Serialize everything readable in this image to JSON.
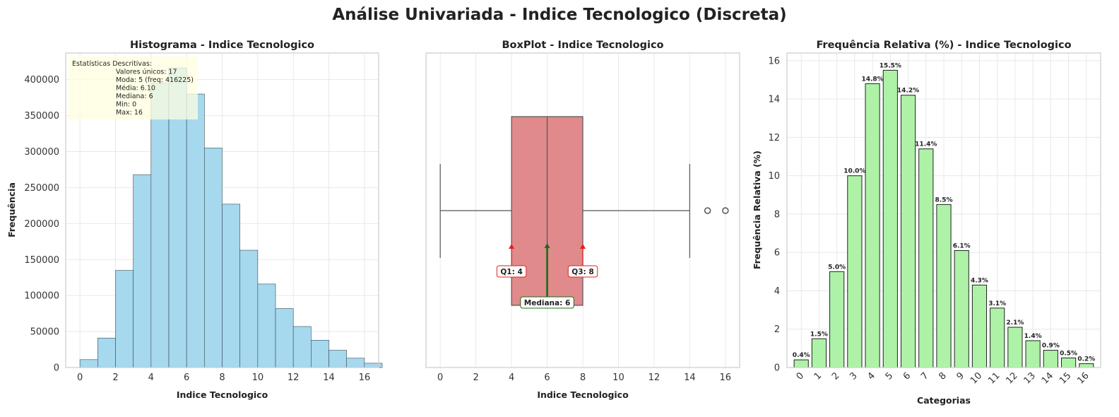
{
  "suptitle": "Análise Univariada - Indice Tecnologico (Discreta)",
  "colors": {
    "hist_bar": "#a6d8ee",
    "box_fill": "#e08a8c",
    "relfreq_bar": "#aef2a8",
    "stats_box": "#ffffe0",
    "quartile_arrow": "#e02020",
    "median_arrow": "#1a6b1a"
  },
  "panels": {
    "histogram": {
      "title": "Histograma - Indice Tecnologico",
      "xlabel": "Indice Tecnologico",
      "ylabel": "Frequência",
      "stats_title": "Estatísticas Descritivas:",
      "stats_lines": [
        "Valores únicos: 17",
        "Moda: 5 (freq: 416225)",
        "Média: 6.10",
        "Mediana: 6",
        "Min: 0",
        "Max: 16"
      ]
    },
    "boxplot": {
      "title": "BoxPlot - Indice Tecnologico",
      "xlabel": "Indice Tecnologico",
      "q1_label": "Q1: 4",
      "q3_label": "Q3: 8",
      "median_label": "Mediana: 6"
    },
    "relfreq": {
      "title": "Frequência Relativa (%) - Indice Tecnologico",
      "xlabel": "Categorias",
      "ylabel": "Frequência Relativa (%)"
    }
  },
  "chart_data": [
    {
      "type": "bar",
      "title": "Histograma - Indice Tecnologico",
      "xlabel": "Indice Tecnologico",
      "ylabel": "Frequência",
      "bin_edges": [
        0,
        1,
        2,
        3,
        4,
        5,
        6,
        7,
        8,
        9,
        10,
        11,
        12,
        13,
        14,
        15,
        16
      ],
      "values": [
        11000,
        41000,
        135000,
        268000,
        395000,
        416225,
        380000,
        305000,
        227000,
        163000,
        116000,
        82000,
        57000,
        38000,
        24000,
        13000,
        6000
      ],
      "xticks": [
        0,
        2,
        4,
        6,
        8,
        10,
        12,
        14,
        16
      ],
      "yticks": [
        0,
        50000,
        100000,
        150000,
        200000,
        250000,
        300000,
        350000,
        400000
      ],
      "xlim": [
        -0.8,
        16.8
      ],
      "ylim": [
        0,
        437000
      ],
      "grid": true
    },
    {
      "type": "box",
      "title": "BoxPlot - Indice Tecnologico",
      "xlabel": "Indice Tecnologico",
      "whisker_low": 0,
      "q1": 4,
      "median": 6,
      "q3": 8,
      "whisker_high": 14,
      "outliers": [
        15,
        16
      ],
      "xticks": [
        0,
        2,
        4,
        6,
        8,
        10,
        12,
        14,
        16
      ],
      "xlim": [
        -0.8,
        16.8
      ],
      "grid": true
    },
    {
      "type": "bar",
      "title": "Frequência Relativa (%) - Indice Tecnologico",
      "xlabel": "Categorias",
      "ylabel": "Frequência Relativa (%)",
      "categories": [
        "0",
        "1",
        "2",
        "3",
        "4",
        "5",
        "6",
        "7",
        "8",
        "9",
        "10",
        "11",
        "12",
        "13",
        "14",
        "15",
        "16"
      ],
      "values": [
        0.4,
        1.5,
        5.0,
        10.0,
        14.8,
        15.5,
        14.2,
        11.4,
        8.5,
        6.1,
        4.3,
        3.1,
        2.1,
        1.4,
        0.9,
        0.5,
        0.2
      ],
      "labels": [
        "0.4%",
        "1.5%",
        "5.0%",
        "10.0%",
        "14.8%",
        "15.5%",
        "14.2%",
        "11.4%",
        "8.5%",
        "6.1%",
        "4.3%",
        "3.1%",
        "2.1%",
        "1.4%",
        "0.9%",
        "0.5%",
        "0.2%"
      ],
      "yticks": [
        0,
        2,
        4,
        6,
        8,
        10,
        12,
        14,
        16
      ],
      "ylim": [
        0,
        16.4
      ],
      "grid": true
    }
  ]
}
